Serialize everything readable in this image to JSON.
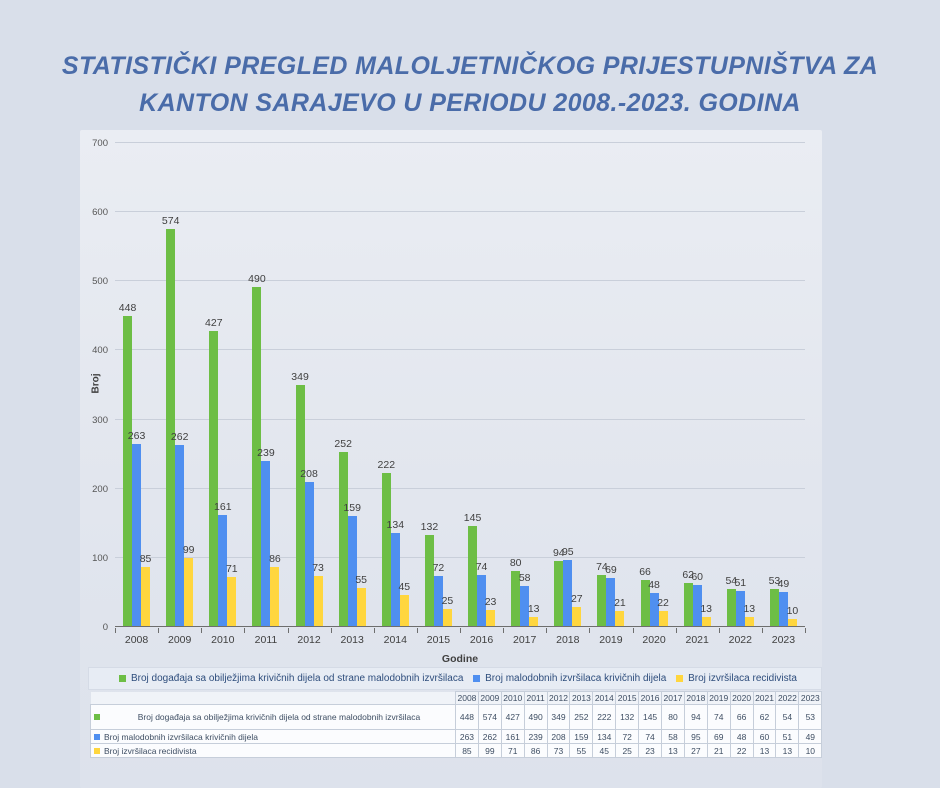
{
  "page": {
    "title_line1": "STATISTIČKI PREGLED MALOLJETNIČKOG PRIJESTUPNIŠTVA ZA",
    "title_line2": "KANTON SARAJEVO U PERIODU 2008.-2023. GODINA"
  },
  "colors": {
    "series1": "#6DBE45",
    "series2": "#4F8FF0",
    "series3": "#FFD63E",
    "title": "#4A6CA9",
    "background": "#D9DFEA"
  },
  "chart_data": {
    "type": "bar",
    "title": "",
    "xlabel": "Godine",
    "ylabel": "Broj",
    "ylim": [
      0,
      700
    ],
    "ytick_interval": 100,
    "grid": true,
    "legend_position": "bottom",
    "categories": [
      "2008",
      "2009",
      "2010",
      "2011",
      "2012",
      "2013",
      "2014",
      "2015",
      "2016",
      "2017",
      "2018",
      "2019",
      "2020",
      "2021",
      "2022",
      "2023"
    ],
    "series": [
      {
        "name": "Broj događaja sa obilježjima krivičnih dijela od strane malodobnih izvršilaca",
        "color": "#6DBE45",
        "values": [
          448,
          574,
          427,
          490,
          349,
          252,
          222,
          132,
          145,
          80,
          94,
          74,
          66,
          62,
          54,
          53
        ]
      },
      {
        "name": "Broj malodobnih izvršilaca krivičnih dijela",
        "color": "#4F8FF0",
        "values": [
          263,
          262,
          161,
          239,
          208,
          159,
          134,
          72,
          74,
          58,
          95,
          69,
          48,
          60,
          51,
          49
        ]
      },
      {
        "name": "Broj izvršilaca recidivista",
        "color": "#FFD63E",
        "values": [
          85,
          99,
          71,
          86,
          73,
          55,
          45,
          25,
          23,
          13,
          27,
          21,
          22,
          13,
          13,
          10
        ]
      }
    ]
  },
  "table": {
    "corner_label": "",
    "columns": [
      "2008",
      "2009",
      "2010",
      "2011",
      "2012",
      "2013",
      "2014",
      "2015",
      "2016",
      "2017",
      "2018",
      "2019",
      "2020",
      "2021",
      "2022",
      "2023"
    ],
    "rows": [
      {
        "label": "Broj događaja sa obilježjima krivičnih dijela od strane malodobnih izvršilaca",
        "marker_color": "#6DBE45",
        "values": [
          448,
          574,
          427,
          490,
          349,
          252,
          222,
          132,
          145,
          80,
          94,
          74,
          66,
          62,
          54,
          53
        ]
      },
      {
        "label": "Broj malodobnih izvršilaca krivičnih dijela",
        "marker_color": "#4F8FF0",
        "values": [
          263,
          262,
          161,
          239,
          208,
          159,
          134,
          72,
          74,
          58,
          95,
          69,
          48,
          60,
          51,
          49
        ]
      },
      {
        "label": "Broj izvršilaca recidivista",
        "marker_color": "#FFD63E",
        "values": [
          85,
          99,
          71,
          86,
          73,
          55,
          45,
          25,
          23,
          13,
          27,
          21,
          22,
          13,
          13,
          10
        ]
      }
    ]
  }
}
